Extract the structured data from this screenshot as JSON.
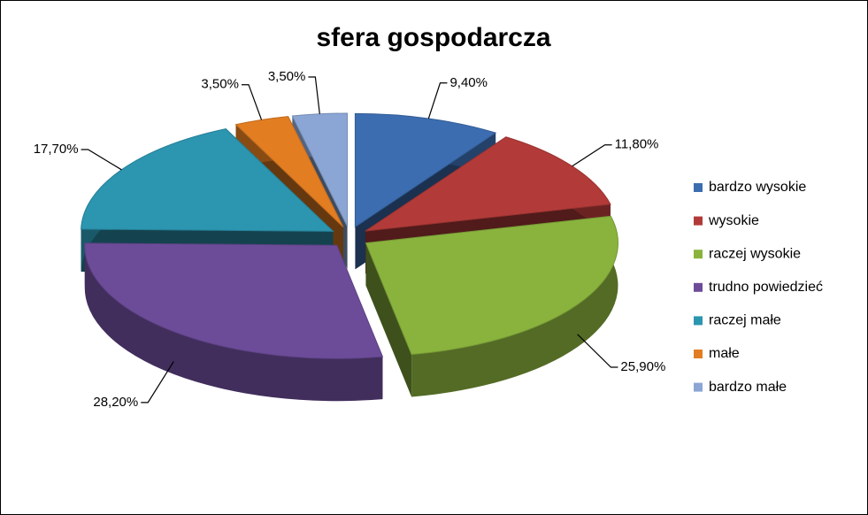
{
  "chart_data": {
    "type": "pie",
    "title": "sfera gospodarcza",
    "categories": [
      "bardzo wysokie",
      "wysokie",
      "raczej wysokie",
      "trudno powiedzieć",
      "raczej małe",
      "małe",
      "bardzo małe"
    ],
    "values": [
      9.4,
      11.8,
      25.9,
      28.2,
      17.7,
      3.5,
      3.5
    ],
    "value_labels": [
      "9,40%",
      "11,80%",
      "25,90%",
      "28,20%",
      "17,70%",
      "3,50%",
      "3,50%"
    ],
    "colors": [
      "#3c6db0",
      "#b23b39",
      "#8ab33e",
      "#6c4c99",
      "#2c95b0",
      "#e27d22",
      "#8ba6d4"
    ],
    "legend": "right"
  }
}
